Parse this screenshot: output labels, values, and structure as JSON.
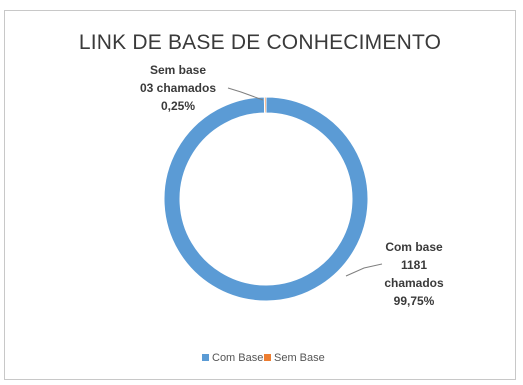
{
  "chart_data": {
    "type": "pie",
    "title": "LINK DE BASE DE CONHECIMENTO",
    "series": [
      {
        "name": "Com Base",
        "value": 1181,
        "percent": 99.75,
        "color": "#5b9bd5",
        "label_lines": [
          "Com base",
          "1181",
          "chamados",
          "99,75%"
        ]
      },
      {
        "name": "Sem Base",
        "value": 3,
        "percent": 0.25,
        "color": "#ed7d31",
        "label_lines": [
          "Sem base",
          "03 chamados",
          "0,25%"
        ]
      }
    ],
    "legend": {
      "placement": "bottom",
      "entries": [
        "Com Base",
        "Sem Base"
      ]
    }
  }
}
